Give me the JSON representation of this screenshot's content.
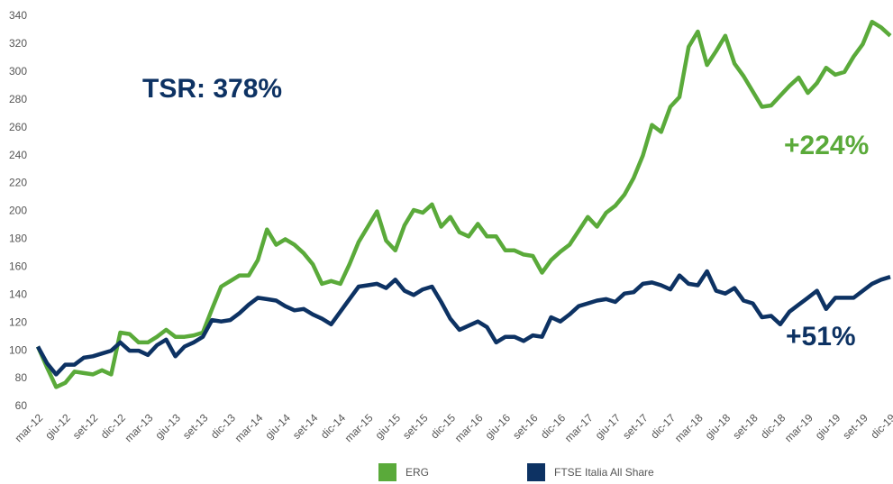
{
  "chart_data": {
    "type": "line",
    "annotations": [
      "TSR:  378%",
      "+224%",
      "+51%"
    ],
    "categories": [
      "mar-12",
      null,
      null,
      "giu-12",
      null,
      null,
      "set-12",
      null,
      null,
      "dic-12",
      null,
      null,
      "mar-13",
      null,
      null,
      "giu-13",
      null,
      null,
      "set-13",
      null,
      null,
      "dic-13",
      null,
      null,
      "mar-14",
      null,
      null,
      "giu-14",
      null,
      null,
      "set-14",
      null,
      null,
      "dic-14",
      null,
      null,
      "mar-15",
      null,
      null,
      "giu-15",
      null,
      null,
      "set-15",
      null,
      null,
      "dic-15",
      null,
      null,
      "mar-16",
      null,
      null,
      "giu-16",
      null,
      null,
      "set-16",
      null,
      null,
      "dic-16",
      null,
      null,
      "mar-17",
      null,
      null,
      "giu-17",
      null,
      null,
      "set-17",
      null,
      null,
      "dic-17",
      null,
      null,
      "mar-18",
      null,
      null,
      "giu-18",
      null,
      null,
      "set-18",
      null,
      null,
      "dic-18",
      null,
      null,
      "mar-19",
      null,
      null,
      "giu-19",
      null,
      null,
      "set-19",
      null,
      null,
      "dic-19"
    ],
    "series": [
      {
        "name": "ERG",
        "color": "#5aaa3a",
        "values": [
          103,
          88,
          74,
          77,
          85,
          84,
          83,
          86,
          83,
          113,
          112,
          106,
          106,
          110,
          115,
          110,
          110,
          111,
          113,
          130,
          146,
          150,
          154,
          154,
          165,
          187,
          176,
          180,
          176,
          170,
          162,
          148,
          150,
          148,
          162,
          178,
          189,
          200,
          179,
          172,
          190,
          201,
          199,
          205,
          189,
          196,
          185,
          182,
          191,
          182,
          182,
          172,
          172,
          169,
          168,
          156,
          165,
          171,
          176,
          186,
          196,
          189,
          199,
          204,
          212,
          224,
          240,
          262,
          257,
          275,
          282,
          318,
          329,
          305,
          315,
          326,
          306,
          297,
          286,
          275,
          276,
          283,
          290,
          296,
          285,
          292,
          303,
          298,
          300,
          311,
          320,
          336,
          332,
          326
        ]
      },
      {
        "name": "FTSE Italia All Share",
        "color": "#0d3263",
        "values": [
          103,
          91,
          83,
          90,
          90,
          95,
          96,
          98,
          100,
          106,
          100,
          100,
          97,
          104,
          108,
          96,
          103,
          106,
          110,
          122,
          121,
          122,
          127,
          133,
          138,
          137,
          136,
          132,
          129,
          130,
          126,
          123,
          119,
          128,
          137,
          146,
          147,
          148,
          145,
          151,
          143,
          140,
          144,
          146,
          135,
          123,
          115,
          118,
          121,
          117,
          106,
          110,
          110,
          107,
          111,
          110,
          124,
          121,
          126,
          132,
          134,
          136,
          137,
          135,
          141,
          142,
          148,
          149,
          147,
          144,
          154,
          148,
          147,
          157,
          143,
          141,
          145,
          136,
          134,
          124,
          125,
          119,
          128,
          133,
          138,
          143,
          130,
          138,
          138,
          138,
          143,
          148,
          151,
          153
        ]
      }
    ],
    "ylim": [
      60,
      340
    ],
    "yticks": [
      60,
      80,
      100,
      120,
      140,
      160,
      180,
      200,
      220,
      240,
      260,
      280,
      300,
      320,
      340
    ],
    "grid": false
  }
}
